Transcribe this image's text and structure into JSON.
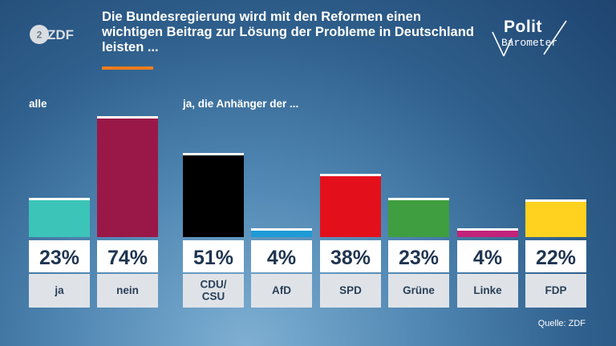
{
  "header": {
    "title": "Die Bundesregierung wird mit den Reformen einen wichtigen Beitrag zur Lösung der Probleme in Deutschland leisten ...",
    "logo_left": "ZDF",
    "logo_right_line1": "Polit",
    "logo_right_line2": "Barometer"
  },
  "groups": {
    "all_label": "alle",
    "supporters_label": "ja, die Anhänger der ..."
  },
  "chart_data": {
    "type": "bar",
    "categories": [
      "ja",
      "nein",
      "CDU/\nCSU",
      "AfD",
      "SPD",
      "Grüne",
      "Linke",
      "FDP"
    ],
    "values": [
      23,
      74,
      51,
      4,
      38,
      23,
      4,
      22
    ],
    "value_labels": [
      "23%",
      "74%",
      "51%",
      "4%",
      "38%",
      "23%",
      "4%",
      "22%"
    ],
    "colors": [
      "#3cc4b8",
      "#9a1848",
      "#000000",
      "#1e9bd7",
      "#e3101c",
      "#3f9e3f",
      "#c2237a",
      "#ffd21f"
    ],
    "ylim": [
      0,
      100
    ]
  },
  "footer": {
    "source": "Quelle: ZDF"
  }
}
